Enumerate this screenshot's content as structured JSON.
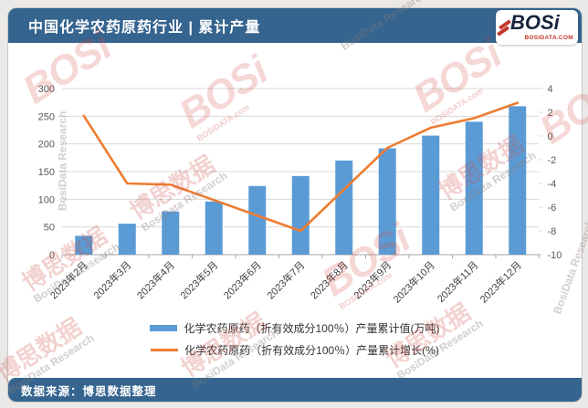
{
  "header": {
    "title": "中国化学农药原药行业 | 累计产量",
    "logo": {
      "brand": "BOSi",
      "domain": "BOSIDATA.COM"
    }
  },
  "footer": {
    "source": "数据来源：博思数据整理"
  },
  "watermark": {
    "brand": "BOSi",
    "brand_cn": "博思数据",
    "research_en": "BosiData Research",
    "domain_small": "BOSiDATA.com"
  },
  "colors": {
    "header_blue": "#35648f",
    "bar_blue": "#5B9BD5",
    "line_orange": "#ED7D31",
    "grid": "#d9d9d9",
    "axis_line": "#a6a6a6",
    "axis_text": "#595959",
    "category_text": "#3f3f3f"
  },
  "chart_data": {
    "type": "bar",
    "subtype": "bar+line combo, dual axis",
    "title": "中国化学农药原药行业 | 累计产量",
    "categories": [
      "2023年2月",
      "2023年3月",
      "2023年4月",
      "2023年5月",
      "2023年6月",
      "2023年7月",
      "2023年8月",
      "2023年9月",
      "2023年10月",
      "2023年11月",
      "2023年12月"
    ],
    "series": [
      {
        "name": "化学农药原药（折有效成分100％）产量累计值(万吨)",
        "type": "bar",
        "axis": "left",
        "color": "#5B9BD5",
        "values": [
          34,
          56,
          78,
          96,
          124,
          142,
          170,
          192,
          215,
          240,
          268
        ]
      },
      {
        "name": "化学农药原药（折有效成分100％）产量累计增长(%)",
        "type": "line",
        "axis": "right",
        "color": "#ED7D31",
        "values": [
          1.7,
          -4.0,
          -4.1,
          -5.4,
          -6.7,
          -8.0,
          -4.5,
          -1.0,
          0.7,
          1.5,
          2.8
        ]
      }
    ],
    "left_axis": {
      "min": 0,
      "max": 300,
      "step": 50
    },
    "right_axis": {
      "min": -10,
      "max": 4,
      "step": 2
    },
    "grid": true,
    "legend_position": "bottom"
  }
}
